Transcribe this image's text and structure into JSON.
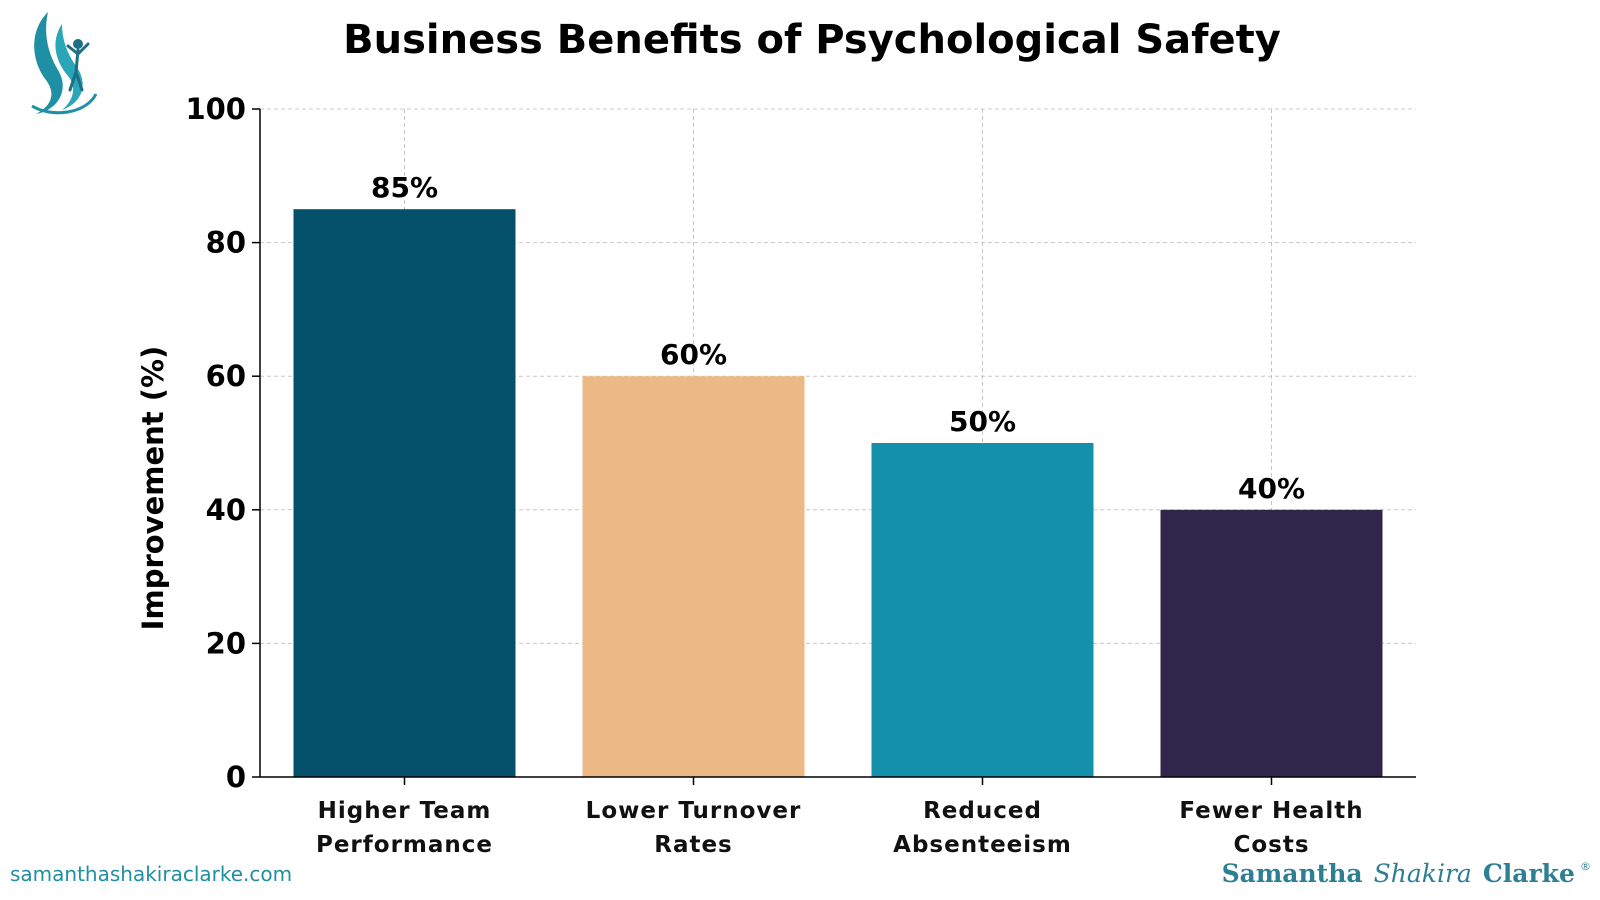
{
  "chart_data": {
    "type": "bar",
    "title": "Business Benefits of Psychological Safety",
    "xlabel": "",
    "ylabel": "Improvement (%)",
    "ylim": [
      0,
      100
    ],
    "yticks": [
      "0",
      "20",
      "40",
      "60",
      "80",
      "100"
    ],
    "grid": true,
    "categories": [
      [
        "Higher Team",
        "Performance"
      ],
      [
        "Lower Turnover",
        "Rates"
      ],
      [
        "Reduced",
        "Absenteeism"
      ],
      [
        "Fewer Health",
        "Costs"
      ]
    ],
    "values": [
      85,
      60,
      50,
      40
    ],
    "data_labels": [
      "85%",
      "60%",
      "50%",
      "40%"
    ],
    "colors": [
      "#04506b",
      "#ecb884",
      "#1590aa",
      "#30264c"
    ]
  },
  "footer": {
    "website": "samanthashakiraclarke.com",
    "brand_first": "Samantha",
    "brand_middle": "Shakira",
    "brand_last": "Clarke",
    "brand_mark": "®"
  },
  "logo": {
    "accent": "#1f8fa3",
    "accent_dark": "#1d6f86"
  }
}
